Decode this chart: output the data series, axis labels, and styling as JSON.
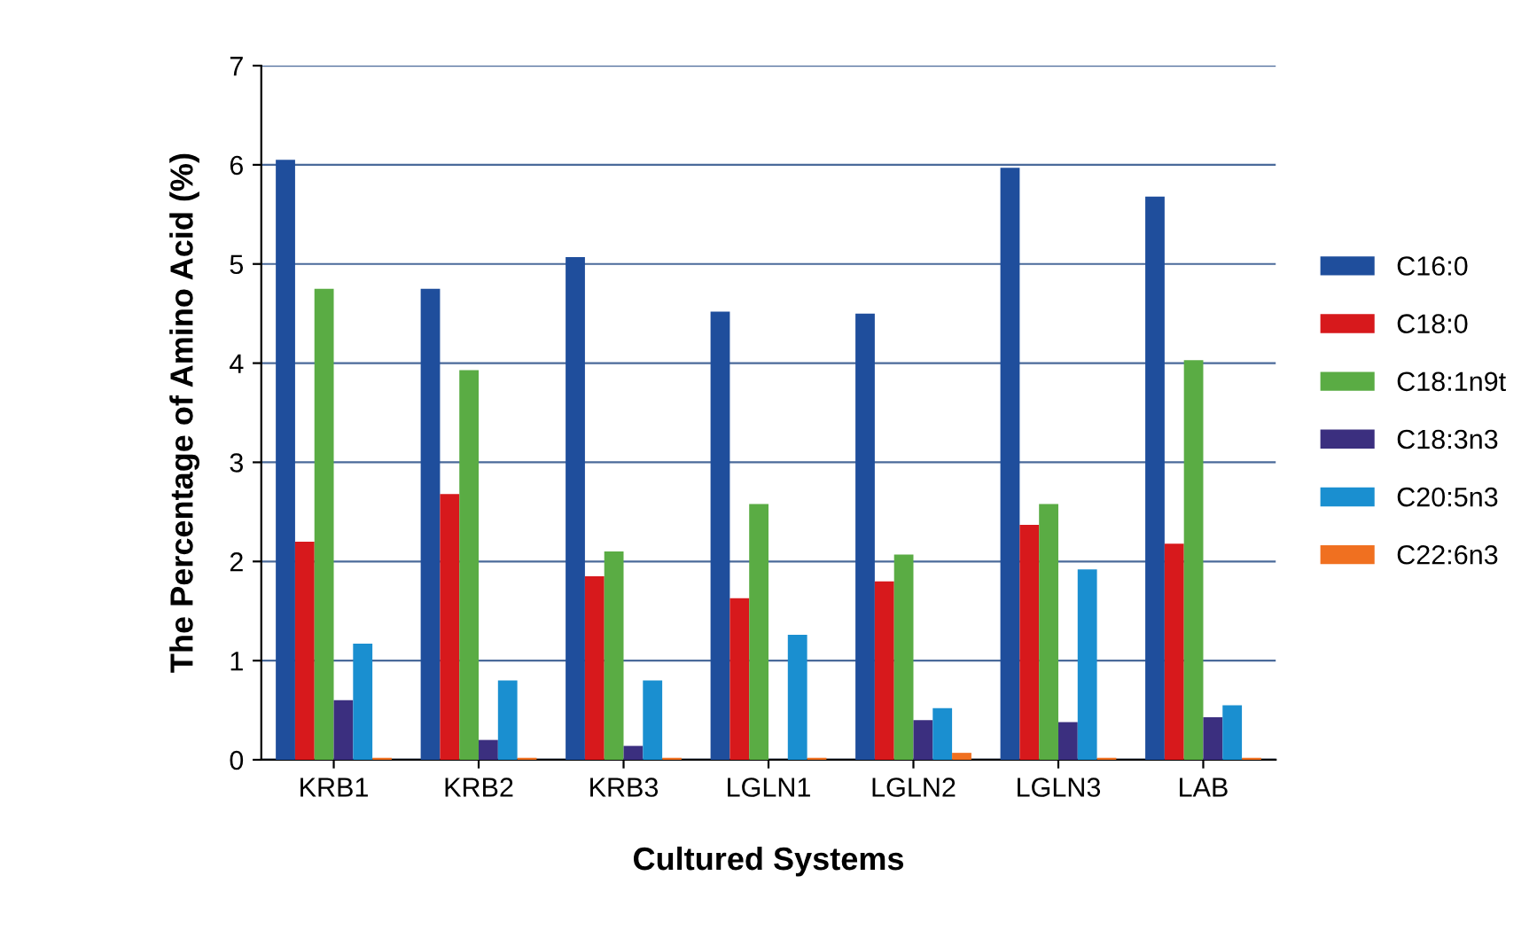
{
  "chart_data": {
    "type": "bar",
    "xlabel": "Cultured Systems",
    "ylabel": "The Percentage of Amino Acid (%)",
    "categories": [
      "KRB1",
      "KRB2",
      "KRB3",
      "LGLN1",
      "LGLN2",
      "LGLN3",
      "LAB"
    ],
    "series": [
      {
        "name": "C16:0",
        "color": "#1f4e9c",
        "values": [
          6.05,
          4.75,
          5.07,
          4.52,
          4.5,
          5.97,
          5.68
        ]
      },
      {
        "name": "C18:0",
        "color": "#d7191c",
        "values": [
          2.2,
          2.68,
          1.85,
          1.63,
          1.8,
          2.37,
          2.18
        ]
      },
      {
        "name": "C18:1n9t",
        "color": "#5aac44",
        "values": [
          4.75,
          3.93,
          2.1,
          2.58,
          2.07,
          2.58,
          4.03
        ]
      },
      {
        "name": "C18:3n3",
        "color": "#3b2f7f",
        "values": [
          0.6,
          0.2,
          0.14,
          null,
          0.4,
          0.38,
          0.43
        ]
      },
      {
        "name": "C20:5n3",
        "color": "#1a8fd0",
        "values": [
          1.17,
          0.8,
          0.8,
          1.26,
          0.52,
          1.92,
          0.55
        ]
      },
      {
        "name": "C22:6n3",
        "color": "#f07020",
        "values": [
          0.02,
          0.02,
          0.02,
          0.02,
          0.07,
          0.02,
          0.02
        ]
      }
    ],
    "ylim": [
      0,
      7
    ],
    "yticks": [
      0,
      1,
      2,
      3,
      4,
      5,
      6,
      7
    ],
    "grid": "y",
    "legend": "right"
  }
}
